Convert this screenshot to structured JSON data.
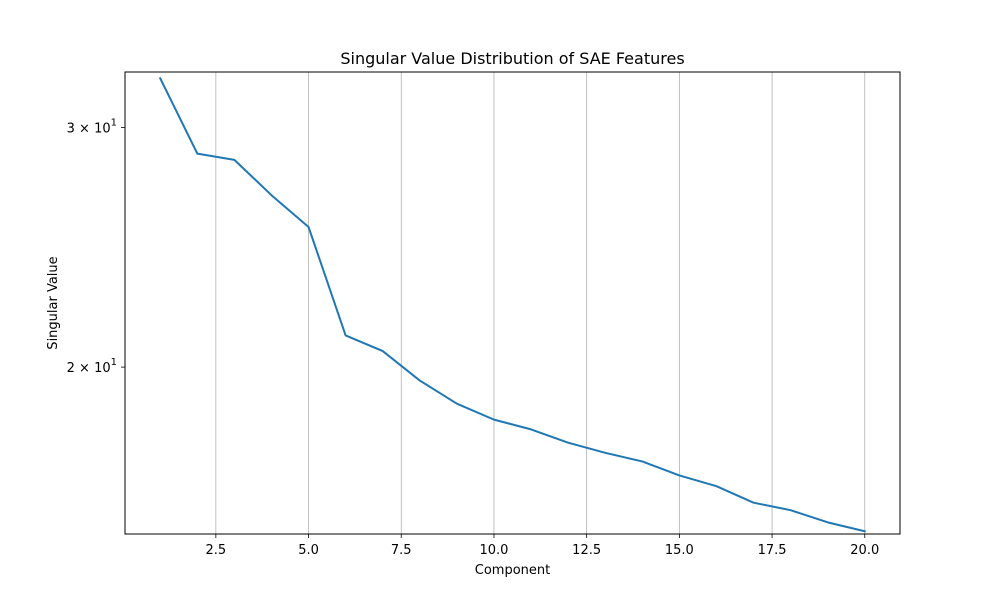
{
  "chart_data": {
    "type": "line",
    "title": "Singular Value Distribution of SAE Features",
    "xlabel": "Component",
    "ylabel": "Singular Value",
    "yscale": "log",
    "xlim": [
      0.05,
      20.95
    ],
    "ylim": [
      15.08,
      32.95
    ],
    "grid": {
      "x": true,
      "y": false
    },
    "x_ticks": [
      2.5,
      5.0,
      7.5,
      10.0,
      12.5,
      15.0,
      17.5,
      20.0
    ],
    "x_tick_labels": [
      "2.5",
      "5.0",
      "7.5",
      "10.0",
      "12.5",
      "15.0",
      "17.5",
      "20.0"
    ],
    "y_ticks": [
      {
        "value": 30,
        "label_base": "3 × 10",
        "label_exp": "1"
      },
      {
        "value": 20,
        "label_base": "2 × 10",
        "label_exp": "1"
      }
    ],
    "series": [
      {
        "color": "#1f77b4",
        "x": [
          1,
          2,
          3,
          4,
          5,
          6,
          7,
          8,
          9,
          10,
          11,
          12,
          13,
          14,
          15,
          16,
          17,
          18,
          19,
          20
        ],
        "values": [
          32.6,
          28.7,
          28.4,
          26.75,
          25.35,
          21.1,
          20.55,
          19.55,
          18.8,
          18.3,
          18.0,
          17.6,
          17.3,
          17.05,
          16.65,
          16.35,
          15.9,
          15.7,
          15.38,
          15.15
        ]
      }
    ]
  }
}
